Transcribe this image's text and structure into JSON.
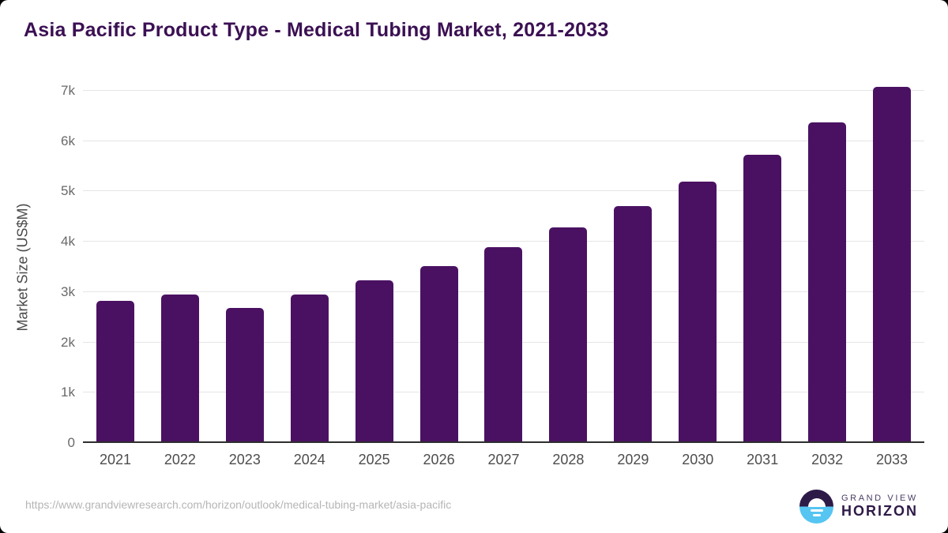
{
  "chart_data": {
    "type": "bar",
    "title": "Asia Pacific Product Type - Medical Tubing Market, 2021-2033",
    "ylabel": "Market Size (US$M)",
    "xlabel": "",
    "categories": [
      "2021",
      "2022",
      "2023",
      "2024",
      "2025",
      "2026",
      "2027",
      "2028",
      "2029",
      "2030",
      "2031",
      "2032",
      "2033"
    ],
    "values": [
      2825,
      2945,
      2690,
      2945,
      3235,
      3520,
      3885,
      4280,
      4705,
      5195,
      5735,
      6365,
      7075
    ],
    "ylim": [
      0,
      7000
    ],
    "yticks": [
      {
        "label": "0",
        "value": 0
      },
      {
        "label": "1k",
        "value": 1000
      },
      {
        "label": "2k",
        "value": 2000
      },
      {
        "label": "3k",
        "value": 3000
      },
      {
        "label": "4k",
        "value": 4000
      },
      {
        "label": "5k",
        "value": 5000
      },
      {
        "label": "6k",
        "value": 6000
      },
      {
        "label": "7k",
        "value": 7000
      }
    ],
    "grid": true,
    "legend_position": "none",
    "bar_color": "#4a1162"
  },
  "footer": {
    "source_url": "https://www.grandviewresearch.com/horizon/outlook/medical-tubing-market/asia-pacific",
    "logo": {
      "top_text": "GRAND VIEW",
      "bottom_text": "HORIZON"
    }
  },
  "colors": {
    "title": "#3b1053",
    "bar": "#4a1162",
    "gridline": "#e5e5e5",
    "axis_line": "#2e2e2e",
    "y_tick": "#696969",
    "x_tick": "#4d4d4d",
    "url_text": "#b5b5b5",
    "logo_purple": "#2e1a47",
    "logo_blue": "#56c5f2",
    "card_background": "#ffffff"
  }
}
